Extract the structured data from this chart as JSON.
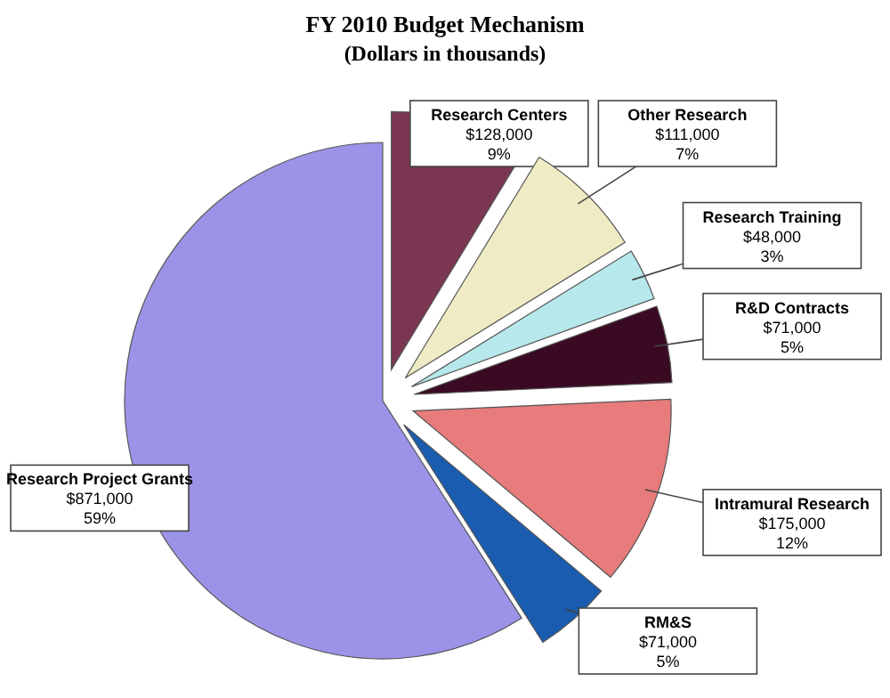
{
  "chart_data": {
    "type": "pie",
    "title": "FY  2010 Budget Mechanism",
    "subtitle": "(Dollars in thousands)",
    "categories": [
      "Research Centers",
      "Other Research",
      "Research Training",
      "R&D Contracts",
      "Intramural Research",
      "RM&S",
      "Research Project Grants"
    ],
    "values": [
      128000,
      111000,
      48000,
      71000,
      175000,
      71000,
      871000
    ],
    "value_labels": [
      "$128,000\n9%",
      "$111,000\n7%",
      "$48,000\n3%",
      "$71,000\n5%",
      "$175,000\n12%",
      "$71,000\n5%",
      "$871,000\n59%"
    ],
    "colors": [
      "#7b3652",
      "#efebc4",
      "#b6e8ec",
      "#3a0a22",
      "#e87b7b",
      "#1a5cb0",
      "#9b93e8"
    ]
  }
}
